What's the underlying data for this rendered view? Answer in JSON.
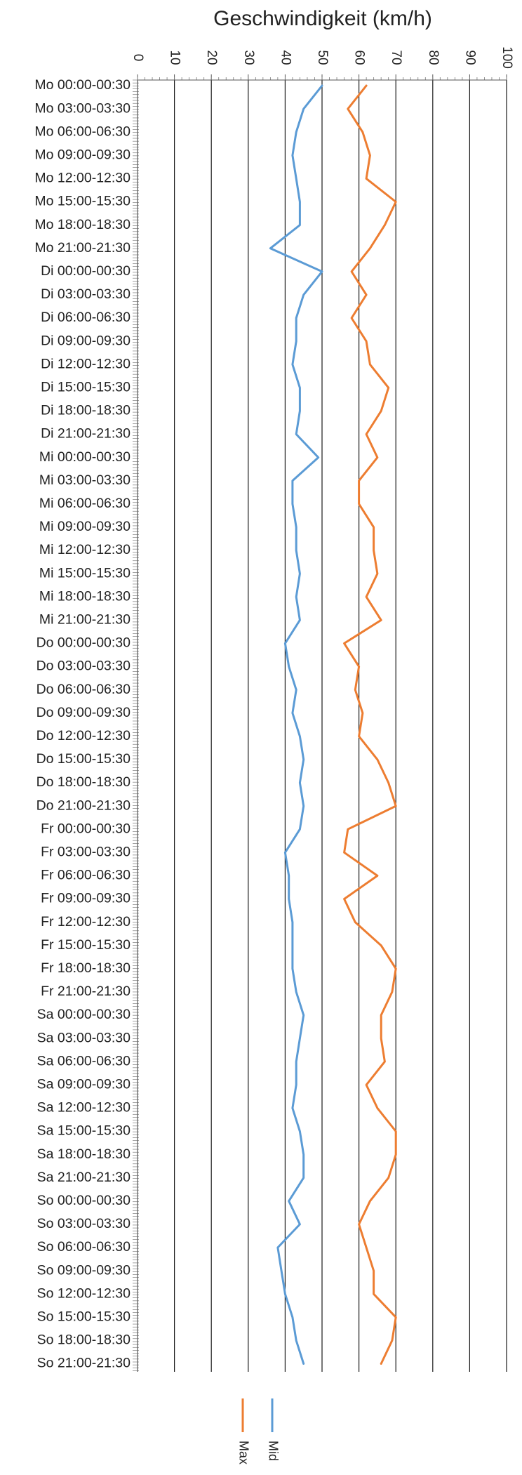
{
  "chart_data": {
    "type": "line",
    "title": "Geschwindigkeit (km/h)",
    "xlabel": "",
    "ylabel": "",
    "value_axis": {
      "range": [
        0,
        100
      ],
      "ticks": [
        0,
        10,
        20,
        30,
        40,
        50,
        60,
        70,
        80,
        90,
        100
      ]
    },
    "grid": true,
    "legend_position": "bottom",
    "categories": [
      "Mo 00:00-00:30",
      "Mo 03:00-03:30",
      "Mo 06:00-06:30",
      "Mo 09:00-09:30",
      "Mo 12:00-12:30",
      "Mo 15:00-15:30",
      "Mo 18:00-18:30",
      "Mo 21:00-21:30",
      "Di 00:00-00:30",
      "Di 03:00-03:30",
      "Di 06:00-06:30",
      "Di 09:00-09:30",
      "Di 12:00-12:30",
      "Di 15:00-15:30",
      "Di 18:00-18:30",
      "Di 21:00-21:30",
      "Mi 00:00-00:30",
      "Mi 03:00-03:30",
      "Mi 06:00-06:30",
      "Mi 09:00-09:30",
      "Mi 12:00-12:30",
      "Mi 15:00-15:30",
      "Mi 18:00-18:30",
      "Mi 21:00-21:30",
      "Do 00:00-00:30",
      "Do 03:00-03:30",
      "Do 06:00-06:30",
      "Do 09:00-09:30",
      "Do 12:00-12:30",
      "Do 15:00-15:30",
      "Do 18:00-18:30",
      "Do 21:00-21:30",
      "Fr 00:00-00:30",
      "Fr 03:00-03:30",
      "Fr 06:00-06:30",
      "Fr 09:00-09:30",
      "Fr 12:00-12:30",
      "Fr 15:00-15:30",
      "Fr 18:00-18:30",
      "Fr 21:00-21:30",
      "Sa 00:00-00:30",
      "Sa 03:00-03:30",
      "Sa 06:00-06:30",
      "Sa 09:00-09:30",
      "Sa 12:00-12:30",
      "Sa 15:00-15:30",
      "Sa 18:00-18:30",
      "Sa 21:00-21:30",
      "So 00:00-00:30",
      "So 03:00-03:30",
      "So 06:00-06:30",
      "So 09:00-09:30",
      "So 12:00-12:30",
      "So 15:00-15:30",
      "So 18:00-18:30",
      "So 21:00-21:30"
    ],
    "series": [
      {
        "name": "Mid",
        "color": "#5b9bd5",
        "values": [
          50,
          45,
          43,
          42,
          43,
          44,
          44,
          36,
          50,
          45,
          43,
          43,
          42,
          44,
          44,
          43,
          49,
          42,
          42,
          43,
          43,
          44,
          43,
          44,
          40,
          41,
          43,
          42,
          44,
          45,
          44,
          45,
          44,
          40,
          41,
          41,
          42,
          42,
          42,
          43,
          45,
          44,
          43,
          43,
          42,
          44,
          45,
          45,
          41,
          44,
          38,
          39,
          40,
          42,
          43,
          45
        ]
      },
      {
        "name": "Max",
        "color": "#ed7d31",
        "values": [
          62,
          57,
          61,
          63,
          62,
          70,
          67,
          63,
          58,
          62,
          58,
          62,
          63,
          68,
          66,
          62,
          65,
          60,
          60,
          64,
          64,
          65,
          62,
          66,
          56,
          60,
          59,
          61,
          60,
          65,
          68,
          70,
          57,
          56,
          65,
          56,
          59,
          66,
          70,
          69,
          66,
          66,
          67,
          62,
          65,
          70,
          70,
          68,
          63,
          60,
          62,
          64,
          64,
          70,
          69,
          66
        ]
      }
    ],
    "legend": [
      {
        "label": "Mid",
        "color": "#5b9bd5"
      },
      {
        "label": "Max",
        "color": "#ed7d31"
      }
    ]
  }
}
